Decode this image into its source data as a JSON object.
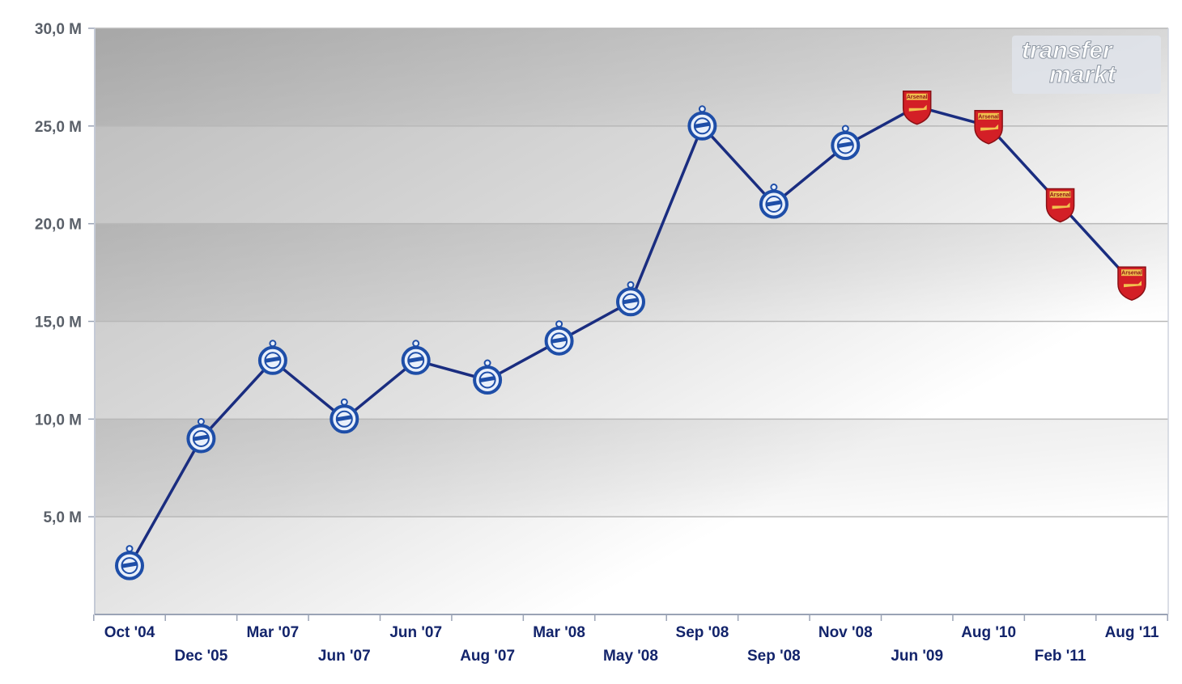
{
  "watermark": {
    "line1": "transfer",
    "line2": "markt"
  },
  "chart_data": {
    "type": "line",
    "ylim": [
      0,
      30
    ],
    "yticks": [
      "5,0 M",
      "10,0 M",
      "15,0 M",
      "20,0 M",
      "25,0 M",
      "30,0 M"
    ],
    "ytick_values": [
      5,
      10,
      15,
      20,
      25,
      30
    ],
    "categories": [
      "Oct '04",
      "Dec '05",
      "Mar '07",
      "Jun '07",
      "Jun '07",
      "Aug '07",
      "Mar '08",
      "May '08",
      "Sep '08",
      "Sep '08",
      "Nov '08",
      "Jun '09",
      "Aug '10",
      "Feb '11",
      "Aug '11"
    ],
    "values": [
      2.5,
      9,
      13,
      10,
      13,
      12,
      14,
      16,
      25,
      21,
      24,
      26,
      25,
      21,
      17
    ],
    "club": [
      "zenit",
      "zenit",
      "zenit",
      "zenit",
      "zenit",
      "zenit",
      "zenit",
      "zenit",
      "zenit",
      "zenit",
      "zenit",
      "arsenal",
      "arsenal",
      "arsenal",
      "arsenal"
    ],
    "crest_text": {
      "arsenal": "Arsenal"
    },
    "colors": {
      "line": "#1a2d80",
      "zenit": "#1e4ea8",
      "arsenal": "#d31f26"
    },
    "grid": true,
    "xlabel": "",
    "ylabel": "",
    "title": ""
  }
}
